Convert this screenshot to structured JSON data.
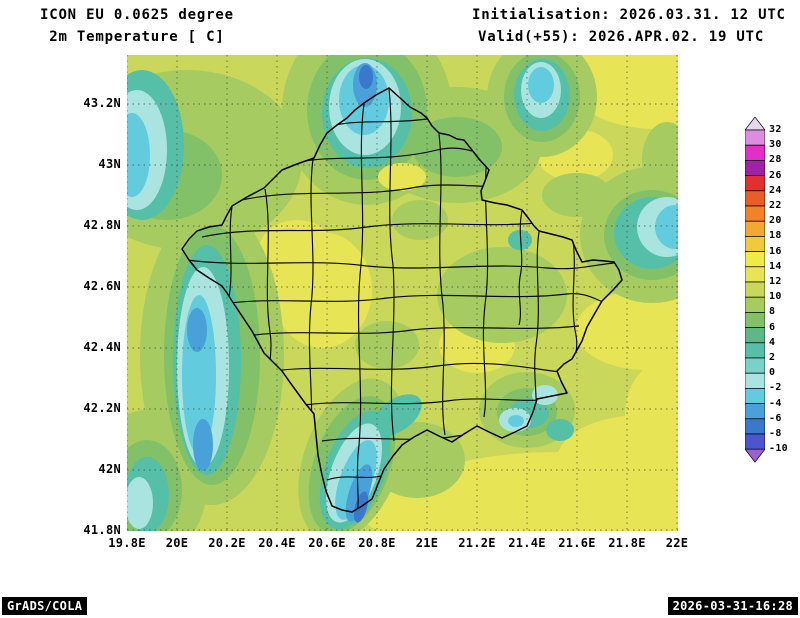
{
  "header": {
    "model": "ICON EU 0.0625 degree",
    "variable": " 2m Temperature [ C]",
    "init": "Initialisation: 2026.03.31. 12 UTC",
    "valid": "Valid(+55): 2026.APR.02. 19 UTC"
  },
  "footer": {
    "grads": "GrADS/COLA",
    "timestamp": "2026-03-31-16:28"
  },
  "axes": {
    "lat_labels": [
      "43.2N",
      "43N",
      "42.8N",
      "42.6N",
      "42.4N",
      "42.2N",
      "42N",
      "41.8N"
    ],
    "lon_labels": [
      "19.8E",
      "20E",
      "20.2E",
      "20.4E",
      "20.6E",
      "20.8E",
      "21E",
      "21.2E",
      "21.4E",
      "21.6E",
      "21.8E",
      "22E"
    ],
    "lon_range": [
      19.8,
      22.0
    ],
    "lat_range": [
      41.8,
      43.36
    ]
  },
  "colorbar": {
    "unit": "C",
    "labels": [
      "32",
      "30",
      "28",
      "26",
      "24",
      "22",
      "20",
      "18",
      "16",
      "14",
      "12",
      "10",
      "8",
      "6",
      "4",
      "2",
      "0",
      "-2",
      "-4",
      "-6",
      "-8",
      "-10"
    ],
    "colors": [
      "#e8d7ef",
      "#dd8ce0",
      "#e030c8",
      "#a020aa",
      "#e03030",
      "#ea5c28",
      "#f08228",
      "#f2a832",
      "#eeca3c",
      "#eeea47",
      "#e7e455",
      "#c9d75b",
      "#a6cb60",
      "#82c168",
      "#5cb987",
      "#55bfa8",
      "#77d3c8",
      "#a9e4e0",
      "#62cbdd",
      "#4aa0d8",
      "#3a78cc",
      "#4b55cc",
      "#9a5fd0"
    ]
  }
}
